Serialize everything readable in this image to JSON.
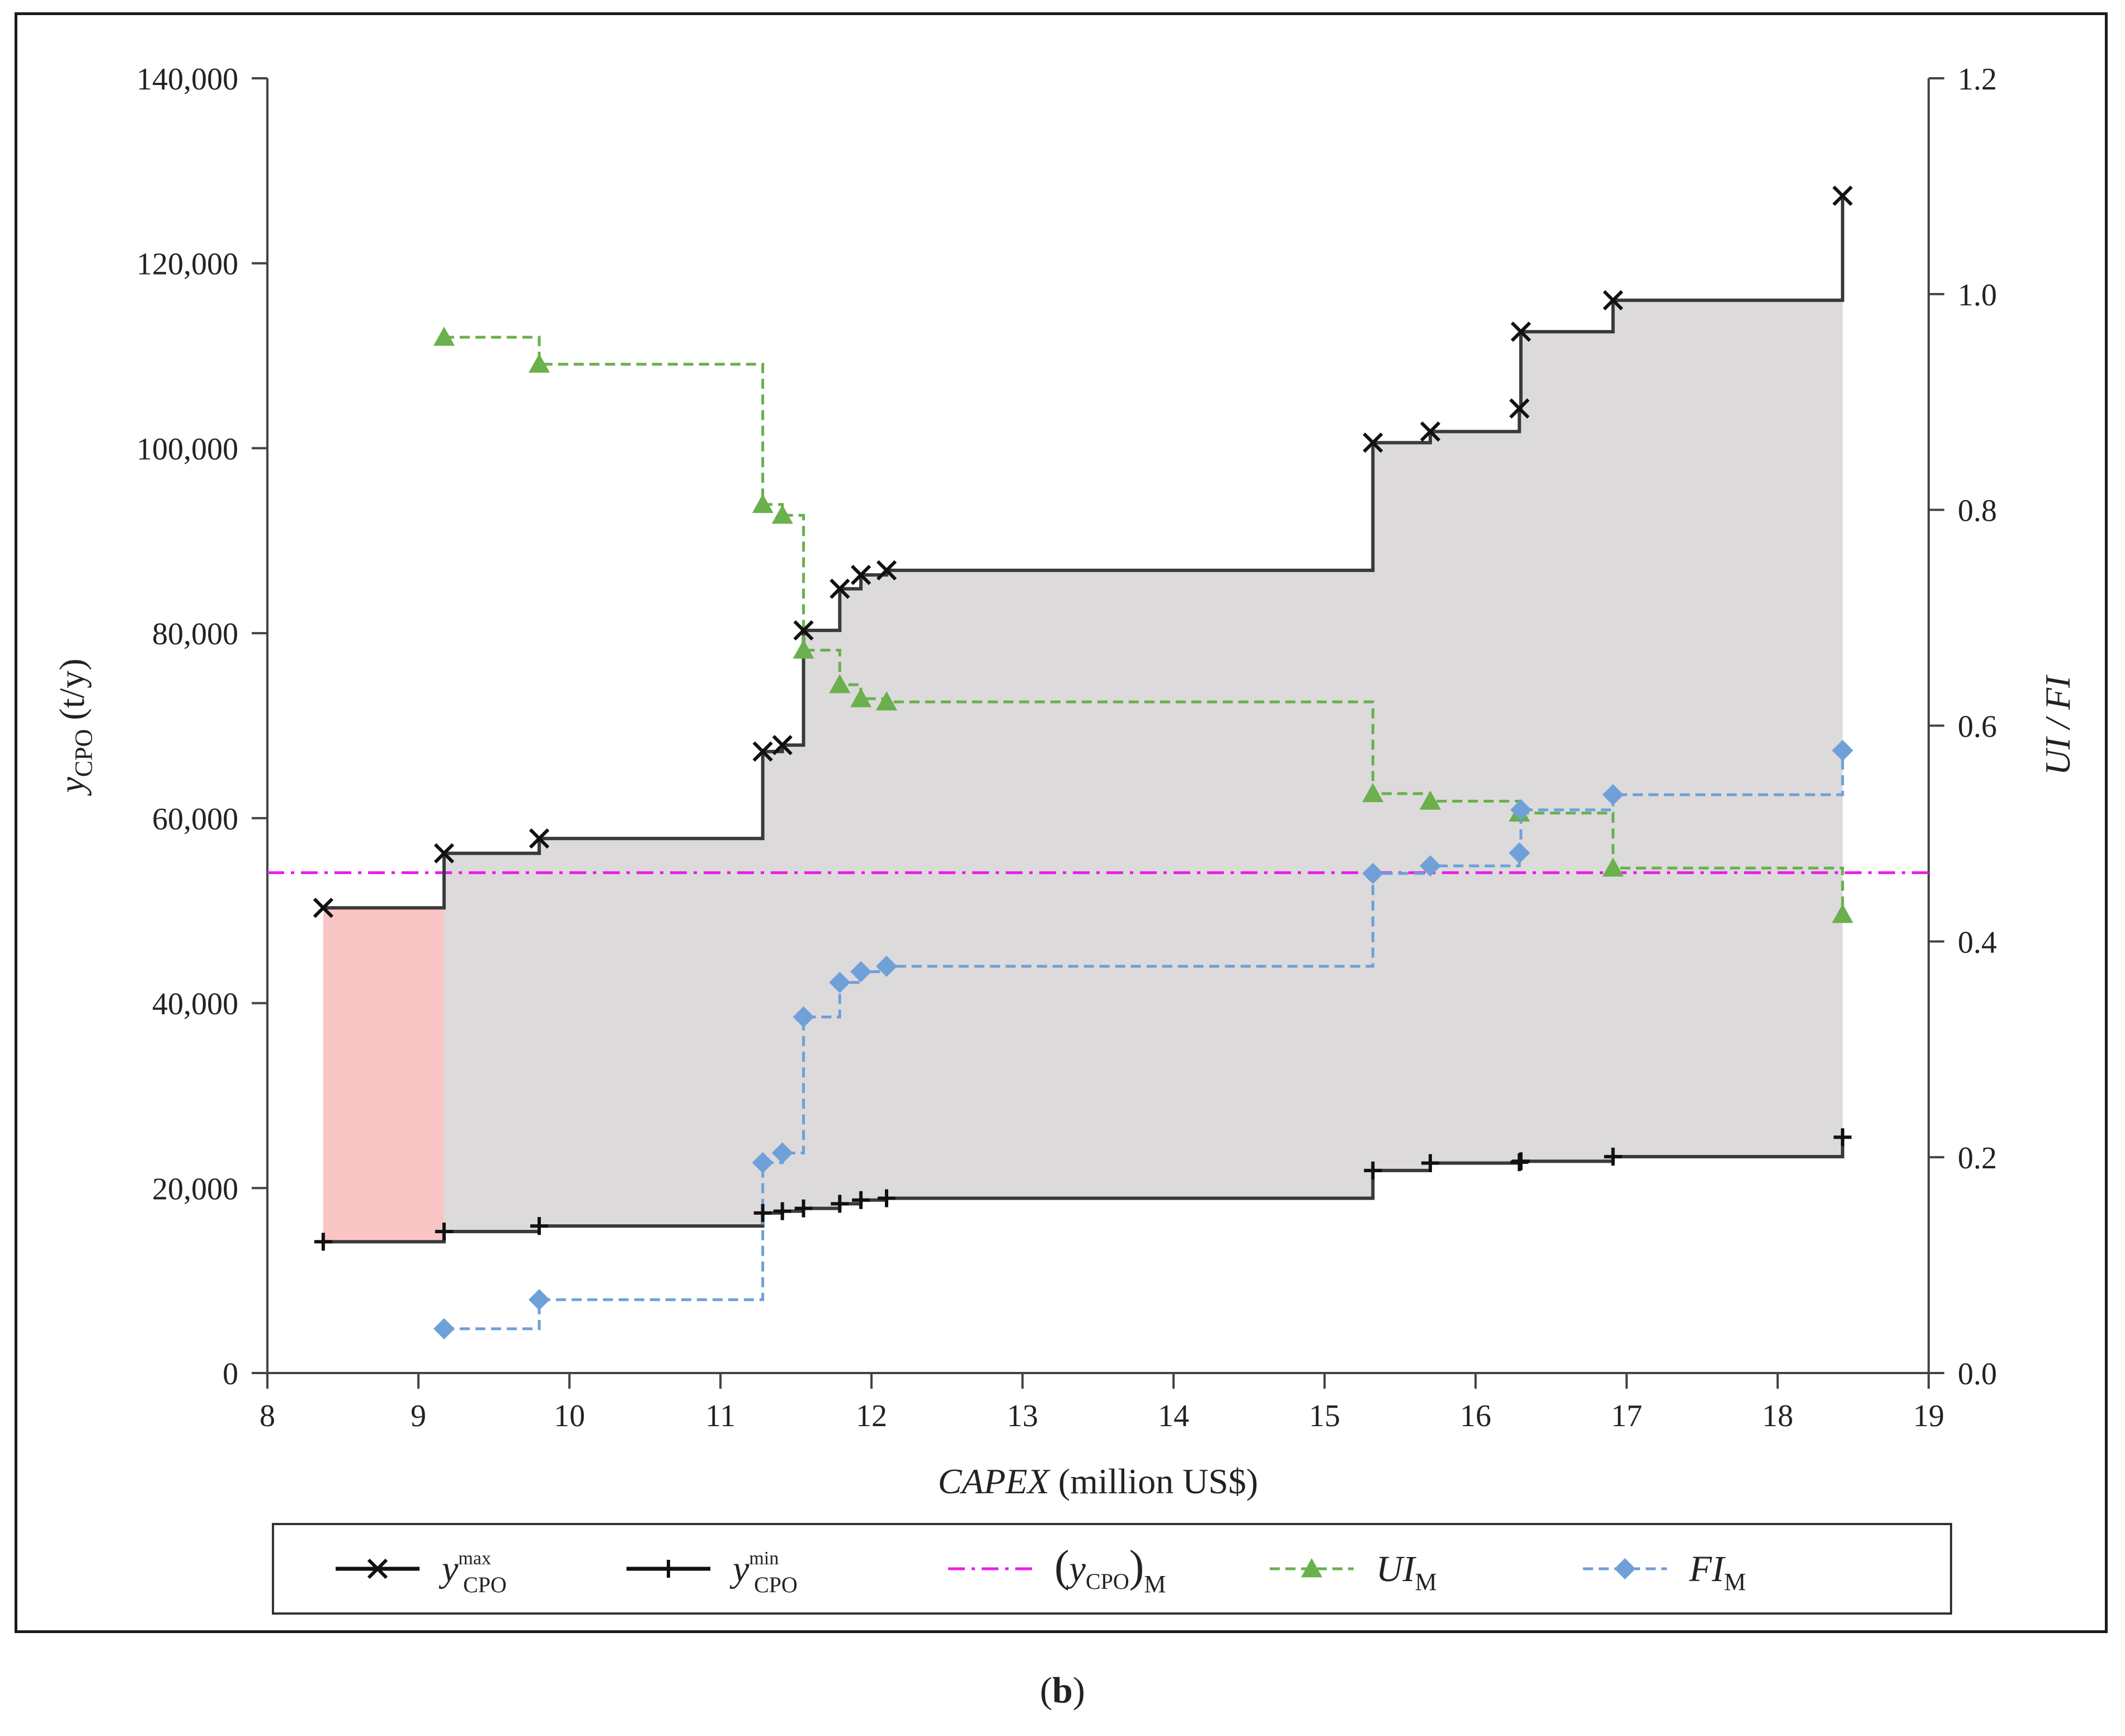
{
  "chart_data": {
    "type": "line",
    "subplot_label": "b",
    "xlabel": {
      "italic": "CAPEX",
      "rest": "(million US$)"
    },
    "ylabel_left": {
      "main": "y",
      "sub": "CPO",
      "unit": "(t/y)"
    },
    "ylabel_right": "UI / FI",
    "xlim": [
      8,
      19
    ],
    "ylim_left": [
      0,
      140000
    ],
    "ylim_right": [
      0.0,
      1.2
    ],
    "x_ticks": [
      "8",
      "9",
      "10",
      "11",
      "12",
      "13",
      "14",
      "15",
      "16",
      "17",
      "18",
      "19"
    ],
    "y_left_ticks": [
      "0",
      "20,000",
      "40,000",
      "60,000",
      "80,000",
      "100,000",
      "120,000",
      "140,000"
    ],
    "y_right_ticks": [
      "0.0",
      "0.2",
      "0.4",
      "0.6",
      "0.8",
      "1.0",
      "1.2"
    ],
    "x": [
      8.37,
      9.17,
      9.8,
      11.28,
      11.41,
      11.55,
      11.79,
      11.93,
      12.1,
      15.32,
      15.7,
      16.29,
      16.3,
      16.91,
      18.43
    ],
    "series": [
      {
        "name": "y_CPO^max",
        "axis": "left",
        "color": "#111111",
        "marker": "x",
        "line": "solid-step",
        "values": [
          50300,
          56200,
          57800,
          67200,
          67900,
          80300,
          84800,
          86300,
          86800,
          100600,
          101800,
          104300,
          112600,
          116000,
          127300
        ]
      },
      {
        "name": "y_CPO^min",
        "axis": "left",
        "color": "#111111",
        "marker": "+",
        "line": "solid-step",
        "values": [
          14200,
          15300,
          15900,
          17300,
          17500,
          17800,
          18300,
          18700,
          18900,
          21900,
          22700,
          22800,
          22900,
          23400,
          25500
        ]
      },
      {
        "name": "UI_M",
        "axis": "right",
        "color": "#6ab04c",
        "marker": "triangle",
        "line": "dashed-step",
        "x": [
          9.17,
          9.8,
          11.28,
          11.41,
          11.55,
          11.79,
          11.93,
          12.1,
          15.32,
          15.7,
          16.29,
          16.91,
          18.43
        ],
        "values": [
          0.96,
          0.935,
          0.805,
          0.795,
          0.67,
          0.638,
          0.625,
          0.622,
          0.537,
          0.53,
          0.519,
          0.468,
          0.425
        ]
      },
      {
        "name": "FI_M",
        "axis": "right",
        "color": "#6fa0d8",
        "marker": "diamond",
        "line": "dashed-step",
        "x": [
          9.17,
          9.8,
          11.28,
          11.41,
          11.55,
          11.79,
          11.93,
          12.1,
          15.32,
          15.7,
          16.29,
          16.3,
          16.91,
          18.43
        ],
        "values": [
          0.041,
          0.068,
          0.195,
          0.204,
          0.33,
          0.362,
          0.372,
          0.377,
          0.463,
          0.47,
          0.482,
          0.522,
          0.536,
          0.577
        ]
      }
    ],
    "reference_line": {
      "name": "(y_CPO)_M",
      "axis": "left",
      "value": 54100,
      "color": "#e81ee8",
      "style": "dash-dot"
    },
    "shaded_regions": [
      {
        "x_range": [
          8.37,
          9.17
        ],
        "color": "#f9c5c5",
        "between": "y_min and y_max"
      },
      {
        "x_range": [
          9.17,
          18.43
        ],
        "color": "#dcdadb",
        "between": "y_min and y_max"
      }
    ],
    "legend": {
      "placement": "bottom",
      "entries": [
        {
          "base": "y",
          "sub": "CPO",
          "sup": "max",
          "marker": "x",
          "color": "#111111",
          "dash": "solid"
        },
        {
          "base": "y",
          "sub": "CPO",
          "sup": "min",
          "marker": "+",
          "color": "#111111",
          "dash": "solid"
        },
        {
          "base": "y",
          "sub": "CPO",
          "paren": true,
          "outer_sub": "M",
          "marker": "none",
          "color": "#e81ee8",
          "dash": "dashdot"
        },
        {
          "base": "UI",
          "sub": "M",
          "marker": "triangle",
          "color": "#6ab04c",
          "dash": "dashed"
        },
        {
          "base": "FI",
          "sub": "M",
          "marker": "diamond",
          "color": "#6fa0d8",
          "dash": "dashed"
        }
      ]
    }
  }
}
